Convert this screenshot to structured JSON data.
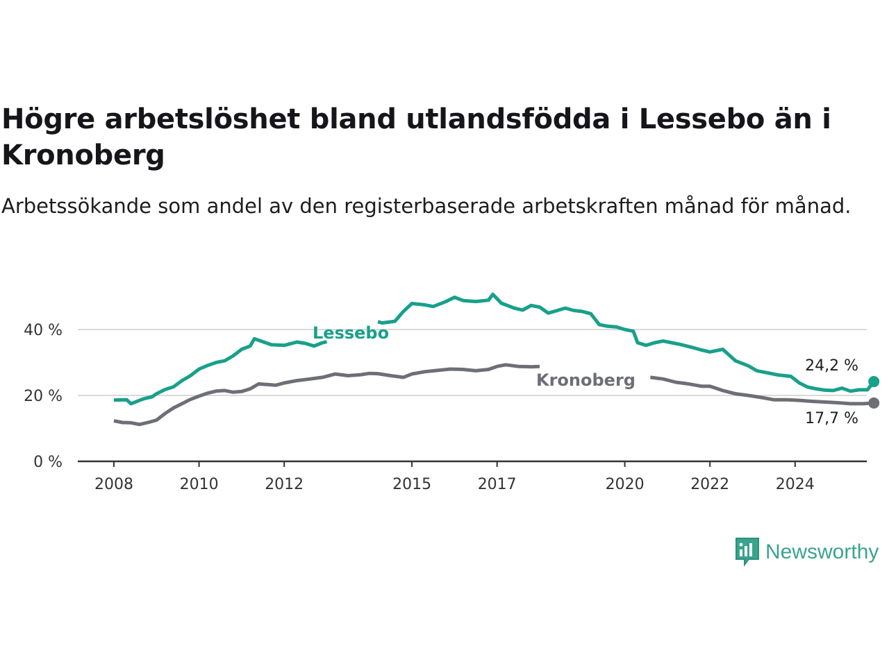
{
  "title": "Högre arbetslöshet bland utlandsfödda i Lessebo än i Kronoberg",
  "subtitle": "Arbetssökande som andel av den registerbaserade arbetskraften månad för månad.",
  "brand": {
    "name": "Newsworthy",
    "color": "#3aa38d",
    "icon": "newsworthy-chart-icon"
  },
  "chart_data": {
    "type": "line",
    "ylim": [
      0,
      50
    ],
    "y_ticks": [
      0,
      20,
      40
    ],
    "y_tick_labels": [
      "0 %",
      "20 %",
      "40 %"
    ],
    "x_ticks": [
      2008,
      2010,
      2012,
      2015,
      2017,
      2020,
      2022,
      2024
    ],
    "x_tick_labels": [
      "2008",
      "2010",
      "2012",
      "2015",
      "2017",
      "2020",
      "2022",
      "2024"
    ],
    "grid": "horizontal",
    "legend": "inline labels",
    "series": [
      {
        "name": "Lessebo",
        "color": "#18a08a",
        "end_label": "24,2 %",
        "points": [
          [
            2008.0,
            18.6
          ],
          [
            2008.3,
            18.7
          ],
          [
            2008.4,
            17.5
          ],
          [
            2008.7,
            19.0
          ],
          [
            2008.9,
            19.6
          ],
          [
            2009.0,
            20.5
          ],
          [
            2009.2,
            21.8
          ],
          [
            2009.4,
            22.6
          ],
          [
            2009.6,
            24.5
          ],
          [
            2009.8,
            26.0
          ],
          [
            2010.0,
            28.0
          ],
          [
            2010.2,
            29.1
          ],
          [
            2010.4,
            30.0
          ],
          [
            2010.6,
            30.5
          ],
          [
            2010.8,
            32.0
          ],
          [
            2011.0,
            34.0
          ],
          [
            2011.2,
            35.0
          ],
          [
            2011.3,
            37.2
          ],
          [
            2011.5,
            36.3
          ],
          [
            2011.7,
            35.4
          ],
          [
            2012.0,
            35.2
          ],
          [
            2012.3,
            36.2
          ],
          [
            2012.5,
            35.8
          ],
          [
            2012.7,
            35.0
          ],
          [
            2012.9,
            36.0
          ],
          [
            2013.0,
            36.3
          ],
          [
            2014.2,
            42.4
          ],
          [
            2014.3,
            42.0
          ],
          [
            2014.6,
            42.5
          ],
          [
            2014.8,
            45.5
          ],
          [
            2015.0,
            47.9
          ],
          [
            2015.3,
            47.5
          ],
          [
            2015.5,
            47.0
          ],
          [
            2015.8,
            48.5
          ],
          [
            2016.0,
            49.8
          ],
          [
            2016.2,
            48.8
          ],
          [
            2016.5,
            48.5
          ],
          [
            2016.8,
            48.9
          ],
          [
            2016.9,
            50.7
          ],
          [
            2017.1,
            48.0
          ],
          [
            2017.4,
            46.5
          ],
          [
            2017.6,
            45.9
          ],
          [
            2017.8,
            47.3
          ],
          [
            2018.0,
            46.8
          ],
          [
            2018.2,
            45.0
          ],
          [
            2018.4,
            45.7
          ],
          [
            2018.6,
            46.5
          ],
          [
            2018.8,
            45.8
          ],
          [
            2019.0,
            45.5
          ],
          [
            2019.2,
            44.8
          ],
          [
            2019.4,
            41.5
          ],
          [
            2019.6,
            41.0
          ],
          [
            2019.8,
            40.8
          ],
          [
            2020.0,
            40.0
          ],
          [
            2020.2,
            39.5
          ],
          [
            2020.3,
            36.0
          ],
          [
            2020.5,
            35.2
          ],
          [
            2020.7,
            36.0
          ],
          [
            2020.9,
            36.5
          ],
          [
            2021.1,
            36.0
          ],
          [
            2021.3,
            35.5
          ],
          [
            2021.6,
            34.5
          ],
          [
            2021.8,
            33.8
          ],
          [
            2022.0,
            33.2
          ],
          [
            2022.3,
            34.0
          ],
          [
            2022.6,
            30.5
          ],
          [
            2022.9,
            29.0
          ],
          [
            2023.1,
            27.5
          ],
          [
            2023.3,
            27.0
          ],
          [
            2023.6,
            26.2
          ],
          [
            2023.9,
            25.8
          ],
          [
            2024.1,
            23.8
          ],
          [
            2024.3,
            22.5
          ],
          [
            2024.5,
            22.0
          ],
          [
            2024.7,
            21.6
          ],
          [
            2024.9,
            21.5
          ],
          [
            2025.1,
            22.2
          ],
          [
            2025.3,
            21.3
          ],
          [
            2025.5,
            21.7
          ],
          [
            2025.7,
            21.7
          ],
          [
            2025.85,
            24.2
          ]
        ]
      },
      {
        "name": "Kronoberg",
        "color": "#6e6e77",
        "end_label": "17,7 %",
        "points": [
          [
            2008.0,
            12.3
          ],
          [
            2008.2,
            11.8
          ],
          [
            2008.4,
            11.7
          ],
          [
            2008.6,
            11.2
          ],
          [
            2008.8,
            11.8
          ],
          [
            2009.0,
            12.5
          ],
          [
            2009.2,
            14.5
          ],
          [
            2009.4,
            16.2
          ],
          [
            2009.6,
            17.5
          ],
          [
            2009.8,
            18.8
          ],
          [
            2010.0,
            19.8
          ],
          [
            2010.2,
            20.7
          ],
          [
            2010.4,
            21.3
          ],
          [
            2010.6,
            21.5
          ],
          [
            2010.8,
            21.0
          ],
          [
            2011.0,
            21.2
          ],
          [
            2011.2,
            22.0
          ],
          [
            2011.4,
            23.5
          ],
          [
            2011.6,
            23.3
          ],
          [
            2011.8,
            23.1
          ],
          [
            2012.0,
            23.8
          ],
          [
            2012.3,
            24.5
          ],
          [
            2012.6,
            25.0
          ],
          [
            2012.9,
            25.5
          ],
          [
            2013.2,
            26.5
          ],
          [
            2013.5,
            26.0
          ],
          [
            2013.8,
            26.3
          ],
          [
            2014.0,
            26.7
          ],
          [
            2014.2,
            26.6
          ],
          [
            2014.5,
            26.0
          ],
          [
            2014.8,
            25.5
          ],
          [
            2015.0,
            26.5
          ],
          [
            2015.3,
            27.2
          ],
          [
            2015.6,
            27.6
          ],
          [
            2015.9,
            28.0
          ],
          [
            2016.2,
            27.9
          ],
          [
            2016.5,
            27.5
          ],
          [
            2016.8,
            27.9
          ],
          [
            2017.0,
            28.8
          ],
          [
            2017.2,
            29.3
          ],
          [
            2017.5,
            28.8
          ],
          [
            2017.8,
            28.7
          ],
          [
            2018.0,
            28.8
          ],
          [
            2020.6,
            25.5
          ],
          [
            2020.9,
            25.0
          ],
          [
            2021.2,
            24.0
          ],
          [
            2021.5,
            23.5
          ],
          [
            2021.8,
            22.8
          ],
          [
            2022.0,
            22.8
          ],
          [
            2022.3,
            21.5
          ],
          [
            2022.6,
            20.5
          ],
          [
            2022.9,
            20.0
          ],
          [
            2023.2,
            19.4
          ],
          [
            2023.5,
            18.7
          ],
          [
            2023.8,
            18.7
          ],
          [
            2024.1,
            18.5
          ],
          [
            2024.4,
            18.2
          ],
          [
            2024.7,
            18.0
          ],
          [
            2025.0,
            17.8
          ],
          [
            2025.3,
            17.5
          ],
          [
            2025.6,
            17.5
          ],
          [
            2025.85,
            17.7
          ]
        ]
      }
    ]
  }
}
